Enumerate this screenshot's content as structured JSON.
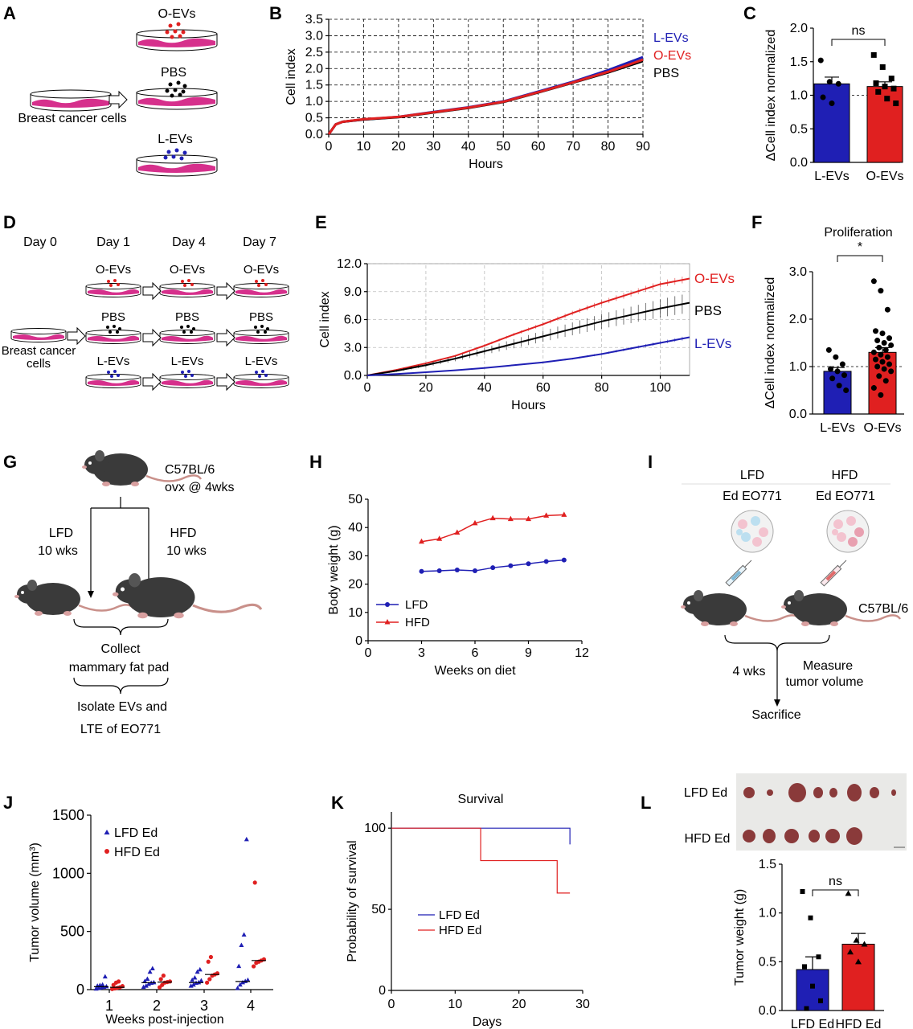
{
  "figure": {
    "panel_letters": [
      "A",
      "B",
      "C",
      "D",
      "E",
      "F",
      "G",
      "H",
      "I",
      "J",
      "K",
      "L"
    ],
    "colors": {
      "lfd": "#1f1fb4",
      "hfd": "#e02020",
      "pbs": "#000000",
      "dish": "#d6308c"
    }
  },
  "panelA": {
    "labels": {
      "o_evs": "O-EVs",
      "pbs": "PBS",
      "l_evs": "L-EVs",
      "cells": "Breast cancer cells"
    }
  },
  "panelD": {
    "days": [
      "Day 0",
      "Day 1",
      "Day 4",
      "Day 7"
    ],
    "row_labels": {
      "o": "O-EVs",
      "p": "PBS",
      "l": "L-EVs"
    },
    "cells_label": "Breast cancer cells",
    "cells_label_lines": [
      "Breast cancer",
      "cells"
    ]
  },
  "panelG": {
    "strain": "C57BL/6",
    "ovx": "ovx @ 4wks",
    "lfd": "LFD",
    "lfd_weeks": "10 wks",
    "hfd": "HFD",
    "hfd_weeks": "10 wks",
    "collect": "Collect",
    "collect2": "mammary fat pad",
    "isolate": "Isolate EVs and",
    "isolate2": "LTE of EO771"
  },
  "panelI": {
    "lfd": "LFD",
    "lfd_cells": "Ed EO771",
    "hfd": "HFD",
    "hfd_cells": "Ed EO771",
    "strain": "C57BL/6",
    "weeks": "4 wks",
    "measure": "Measure",
    "measure2": "tumor volume",
    "sacrifice": "Sacrifice"
  },
  "panelL": {
    "row1": "LFD Ed",
    "row2": "HFD Ed"
  },
  "chart_data": [
    {
      "panel": "B",
      "type": "line",
      "title": "",
      "xlabel": "Hours",
      "ylabel": "Cell index",
      "xlim": [
        0,
        90
      ],
      "ylim": [
        0,
        3.5
      ],
      "xticks": [
        0,
        10,
        20,
        30,
        40,
        50,
        60,
        70,
        80,
        90
      ],
      "yticks": [
        0,
        0.5,
        1.0,
        1.5,
        2.0,
        2.5,
        3.0,
        3.5
      ],
      "ytick_labels": [
        "0.0",
        "0.5",
        "1.0",
        "1.5",
        "2.0",
        "2.5",
        "3.0",
        "3.5"
      ],
      "grid": true,
      "series": [
        {
          "name": "L-EVs",
          "color": "#1f1fb4",
          "x": [
            0,
            1,
            2,
            4,
            10,
            20,
            30,
            40,
            50,
            60,
            70,
            80,
            90
          ],
          "y": [
            0,
            0.15,
            0.3,
            0.38,
            0.45,
            0.53,
            0.68,
            0.82,
            1.0,
            1.3,
            1.6,
            1.95,
            2.35
          ]
        },
        {
          "name": "PBS",
          "color": "#000000",
          "x": [
            0,
            1,
            2,
            4,
            10,
            20,
            30,
            40,
            50,
            60,
            70,
            80,
            90
          ],
          "y": [
            0,
            0.15,
            0.3,
            0.38,
            0.45,
            0.52,
            0.66,
            0.8,
            0.98,
            1.27,
            1.57,
            1.88,
            2.23
          ]
        },
        {
          "name": "O-EVs",
          "color": "#e02020",
          "x": [
            0,
            1,
            2,
            4,
            10,
            20,
            30,
            40,
            50,
            60,
            70,
            80,
            90
          ],
          "y": [
            0,
            0.15,
            0.3,
            0.38,
            0.46,
            0.53,
            0.67,
            0.81,
            0.99,
            1.28,
            1.58,
            1.9,
            2.27
          ]
        }
      ],
      "legend": [
        "L-EVs",
        "O-EVs",
        "PBS"
      ]
    },
    {
      "panel": "C",
      "type": "bar",
      "xlabel": "",
      "ylabel": "ΔCell index normalized",
      "categories": [
        "L-EVs",
        "O-EVs"
      ],
      "values": [
        1.17,
        1.13
      ],
      "errors": [
        0.1,
        0.07
      ],
      "ylim": [
        0,
        2.0
      ],
      "yticks": [
        0,
        0.5,
        1.0,
        1.5,
        2.0
      ],
      "ytick_labels": [
        "0.0",
        "0.5",
        "1.0",
        "1.5",
        "2.0"
      ],
      "reference_line": 1.0,
      "significance": "ns",
      "points": [
        [
          1.52,
          1.2,
          1.17,
          0.97,
          0.88
        ],
        [
          1.6,
          1.42,
          1.25,
          1.18,
          1.13,
          1.1,
          1.05,
          0.95,
          0.88
        ]
      ]
    },
    {
      "panel": "E",
      "type": "line",
      "xlabel": "Hours",
      "ylabel": "Cell index",
      "xlim": [
        0,
        110
      ],
      "ylim": [
        0,
        12
      ],
      "xticks": [
        0,
        20,
        40,
        60,
        80,
        100
      ],
      "yticks": [
        0,
        3,
        6,
        9,
        12
      ],
      "ytick_labels": [
        "0.0",
        "3.0",
        "6.0",
        "9.0",
        "12.0"
      ],
      "grid": true,
      "series": [
        {
          "name": "O-EVs",
          "color": "#e02020",
          "x": [
            0,
            10,
            20,
            30,
            40,
            50,
            60,
            70,
            80,
            90,
            100,
            110
          ],
          "y": [
            0,
            0.6,
            1.3,
            2.1,
            3.2,
            4.4,
            5.5,
            6.7,
            7.8,
            8.8,
            9.8,
            10.4
          ],
          "err": 0.35
        },
        {
          "name": "PBS",
          "color": "#000000",
          "x": [
            0,
            10,
            20,
            30,
            40,
            50,
            60,
            70,
            80,
            90,
            100,
            110
          ],
          "y": [
            0,
            0.5,
            1.1,
            1.8,
            2.6,
            3.4,
            4.2,
            5.0,
            5.8,
            6.5,
            7.2,
            7.8
          ],
          "err": 1.0
        },
        {
          "name": "L-EVs",
          "color": "#1f1fb4",
          "x": [
            0,
            10,
            20,
            30,
            40,
            50,
            60,
            70,
            80,
            90,
            100,
            110
          ],
          "y": [
            0,
            0.15,
            0.35,
            0.55,
            0.8,
            1.1,
            1.4,
            1.8,
            2.3,
            2.9,
            3.5,
            4.1
          ],
          "err": 0.2
        }
      ],
      "legend": [
        "O-EVs",
        "PBS",
        "L-EVs"
      ]
    },
    {
      "panel": "F",
      "type": "bar",
      "title": "Proliferation",
      "ylabel": "ΔCell index normalized",
      "categories": [
        "L-EVs",
        "O-EVs"
      ],
      "values": [
        0.9,
        1.3
      ],
      "errors": [
        0.08,
        0.1
      ],
      "ylim": [
        0,
        3.0
      ],
      "yticks": [
        0,
        1,
        2,
        3
      ],
      "ytick_labels": [
        "0.0",
        "1.0",
        "2.0",
        "3.0"
      ],
      "reference_line": 1.0,
      "significance": "*",
      "points": [
        [
          1.35,
          1.2,
          1.05,
          0.95,
          0.9,
          0.82,
          0.75,
          0.6,
          0.5
        ],
        [
          2.8,
          2.6,
          2.2,
          1.75,
          1.7,
          1.6,
          1.55,
          1.5,
          1.45,
          1.4,
          1.35,
          1.3,
          1.25,
          1.2,
          1.15,
          1.1,
          1.05,
          1.0,
          0.95,
          0.9,
          0.8,
          0.7,
          0.55,
          0.4
        ]
      ]
    },
    {
      "panel": "H",
      "type": "line",
      "xlabel": "Weeks on diet",
      "ylabel": "Body weight (g)",
      "xlim": [
        0,
        12
      ],
      "ylim": [
        0,
        50
      ],
      "xticks": [
        0,
        3,
        6,
        9,
        12
      ],
      "yticks": [
        0,
        10,
        20,
        30,
        40,
        50
      ],
      "series": [
        {
          "name": "LFD",
          "color": "#1f1fb4",
          "marker": "circle",
          "x": [
            3,
            4,
            5,
            6,
            7,
            8,
            9,
            10,
            11
          ],
          "y": [
            24.5,
            24.7,
            25.0,
            24.7,
            25.8,
            26.5,
            27.2,
            28.0,
            28.5
          ]
        },
        {
          "name": "HFD",
          "color": "#e02020",
          "marker": "triangle",
          "x": [
            3,
            4,
            5,
            6,
            7,
            8,
            9,
            10,
            11
          ],
          "y": [
            35.0,
            36.0,
            38.2,
            41.5,
            43.3,
            43.0,
            43.0,
            44.2,
            44.5
          ]
        }
      ],
      "legend": [
        "LFD",
        "HFD"
      ]
    },
    {
      "panel": "J",
      "type": "scatter",
      "xlabel": "Weeks post-injection",
      "ylabel": "Tumor volume (mm³)",
      "categories": [
        "1",
        "2",
        "3",
        "4"
      ],
      "ylim": [
        0,
        1500
      ],
      "yticks": [
        0,
        500,
        1000,
        1500
      ],
      "series": [
        {
          "name": "LFD Ed",
          "color": "#1f1fb4",
          "marker": "triangle",
          "values": [
            [
              5,
              10,
              15,
              20,
              25,
              30,
              35,
              40,
              110
            ],
            [
              20,
              30,
              45,
              55,
              60,
              70,
              90,
              150,
              180
            ],
            [
              30,
              40,
              55,
              60,
              75,
              80,
              100,
              150,
              170
            ],
            [
              10,
              40,
              60,
              70,
              80,
              200,
              380,
              470,
              1290
            ]
          ],
          "medians": [
            25,
            60,
            60,
            70
          ]
        },
        {
          "name": "HFD Ed",
          "color": "#e02020",
          "marker": "circle",
          "values": [
            [
              5,
              10,
              15,
              20,
              30,
              40,
              60,
              70
            ],
            [
              20,
              40,
              60,
              65,
              70,
              90,
              120
            ],
            [
              60,
              90,
              120,
              130,
              140,
              240,
              280
            ],
            [
              200,
              230,
              240,
              250,
              260,
              920
            ]
          ],
          "medians": [
            20,
            65,
            130,
            250
          ]
        }
      ]
    },
    {
      "panel": "K",
      "type": "line",
      "title": "Survival",
      "xlabel": "Days",
      "ylabel": "Probability of survival",
      "xlim": [
        0,
        30
      ],
      "ylim": [
        0,
        110
      ],
      "xticks": [
        0,
        10,
        20,
        30
      ],
      "yticks": [
        0,
        50,
        100
      ],
      "series": [
        {
          "name": "LFD Ed",
          "color": "#1f1fb4",
          "step": true,
          "x": [
            0,
            28,
            28
          ],
          "y": [
            100,
            100,
            90
          ]
        },
        {
          "name": "HFD Ed",
          "color": "#e02020",
          "step": true,
          "x": [
            0,
            14,
            14,
            26,
            26,
            28
          ],
          "y": [
            100,
            100,
            80,
            80,
            60,
            60
          ]
        }
      ],
      "legend": [
        "LFD Ed",
        "HFD Ed"
      ]
    },
    {
      "panel": "L",
      "type": "bar",
      "ylabel": "Tumor weight (g)",
      "significance": "ns",
      "categories": [
        "LFD Ed",
        "HFD Ed"
      ],
      "values": [
        0.42,
        0.68
      ],
      "errors": [
        0.13,
        0.11
      ],
      "ylim": [
        0,
        1.5
      ],
      "yticks": [
        0,
        0.5,
        1.0,
        1.5
      ],
      "ytick_labels": [
        "0.0",
        "0.5",
        "1.0",
        "1.5"
      ],
      "points": [
        [
          1.22,
          0.95,
          0.55,
          0.45,
          0.25,
          0.1,
          0.02
        ],
        [
          1.2,
          0.72,
          0.68,
          0.6,
          0.5
        ]
      ]
    }
  ]
}
